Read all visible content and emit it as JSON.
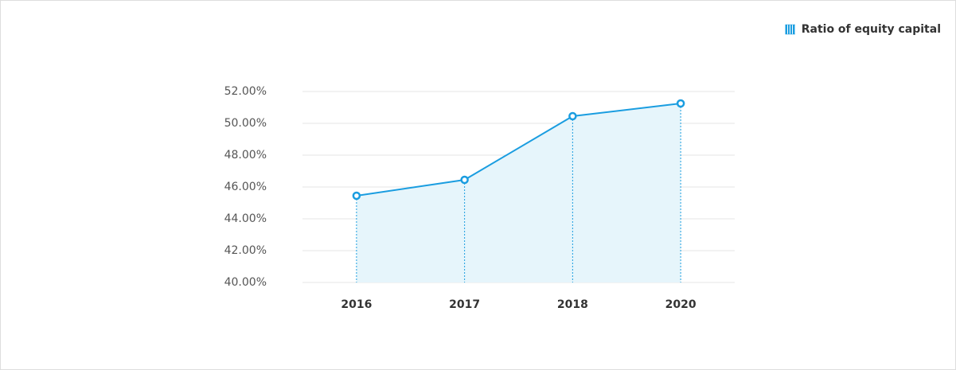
{
  "chart_data": {
    "type": "line",
    "area": true,
    "categories": [
      "2016",
      "2017",
      "2018",
      "2020"
    ],
    "series": [
      {
        "name": "Ratio of equity capital",
        "color": "#1a9de0",
        "values": [
          45.45,
          46.45,
          50.45,
          51.25
        ]
      }
    ],
    "ylim": [
      40,
      52
    ],
    "yticks": [
      {
        "value": 40,
        "label": "40.00%"
      },
      {
        "value": 42,
        "label": "42.00%"
      },
      {
        "value": 44,
        "label": "44.00%"
      },
      {
        "value": 46,
        "label": "46.00%"
      },
      {
        "value": 48,
        "label": "48.00%"
      },
      {
        "value": 50,
        "label": "50.00%"
      },
      {
        "value": 52,
        "label": "52.00%"
      }
    ],
    "grid": true,
    "legend": "top-right"
  }
}
